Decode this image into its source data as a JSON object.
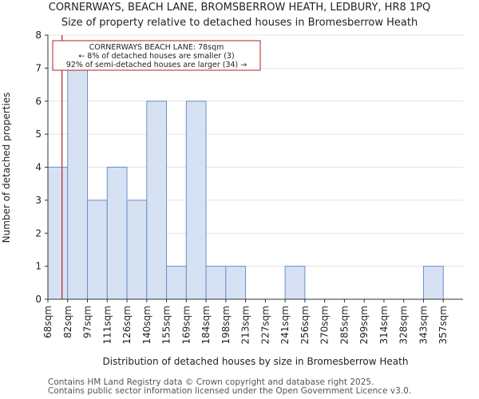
{
  "chart_data": {
    "type": "bar",
    "title": "CORNERWAYS, BEACH LANE, BROMSBERROW HEATH, LEDBURY, HR8 1PQ",
    "subtitle": "Size of property relative to detached houses in Bromesberrow Heath",
    "xlabel": "Distribution of detached houses by size in Bromesberrow Heath",
    "ylabel": "Number of detached properties",
    "categories": [
      "68sqm",
      "82sqm",
      "97sqm",
      "111sqm",
      "126sqm",
      "140sqm",
      "155sqm",
      "169sqm",
      "184sqm",
      "198sqm",
      "213sqm",
      "227sqm",
      "241sqm",
      "256sqm",
      "270sqm",
      "285sqm",
      "299sqm",
      "314sqm",
      "328sqm",
      "343sqm",
      "357sqm"
    ],
    "bin_edges": [
      68,
      82,
      97,
      111,
      126,
      140,
      155,
      169,
      184,
      198,
      213,
      227,
      241,
      256,
      270,
      285,
      299,
      314,
      328,
      343,
      357,
      371
    ],
    "values": [
      4,
      7,
      3,
      4,
      3,
      6,
      1,
      6,
      1,
      1,
      0,
      0,
      1,
      0,
      0,
      0,
      0,
      0,
      0,
      1,
      0
    ],
    "ylim": [
      0,
      8
    ],
    "yticks": [
      0,
      1,
      2,
      3,
      4,
      5,
      6,
      7,
      8
    ],
    "grid": "y",
    "bar_color": "#d6e1f3",
    "bar_edge_color": "#6a8fc9",
    "marker": {
      "x": 78,
      "color": "#b22222",
      "annotation": [
        "CORNERWAYS BEACH LANE: 78sqm",
        "← 8% of detached houses are smaller (3)",
        "92% of semi-detached houses are larger (34) →"
      ]
    }
  },
  "footer": {
    "line1": "Contains HM Land Registry data © Crown copyright and database right 2025.",
    "line2": "Contains public sector information licensed under the Open Government Licence v3.0."
  }
}
